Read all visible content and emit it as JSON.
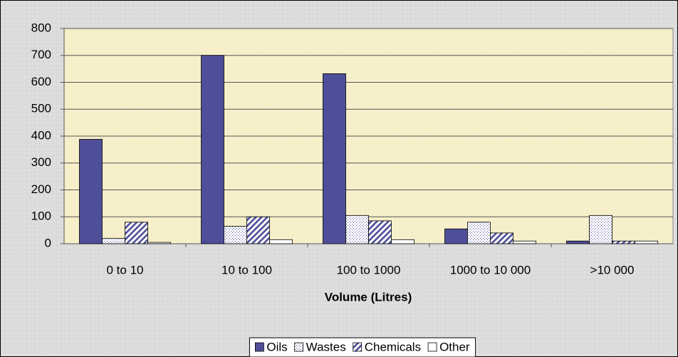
{
  "chart_data": {
    "type": "bar",
    "x_label": "Volume (Litres)",
    "categories": [
      "0 to 10",
      "10 to 100",
      "100 to 1000",
      "1000 to 10 000",
      ">10 000"
    ],
    "series": [
      {
        "name": "Oils",
        "color": "#4f4f99",
        "pattern": "solid",
        "values": [
          388,
          700,
          632,
          55,
          10
        ]
      },
      {
        "name": "Wastes",
        "color": "#4f4f99",
        "pattern": "dots",
        "values": [
          20,
          65,
          105,
          80,
          105
        ]
      },
      {
        "name": "Chemicals",
        "color": "#4f4f99",
        "pattern": "stripes",
        "values": [
          80,
          100,
          85,
          40,
          10
        ]
      },
      {
        "name": "Other",
        "color": "#4f4f99",
        "pattern": "none",
        "values": [
          5,
          15,
          15,
          10,
          10
        ]
      }
    ],
    "ylim": [
      0,
      800
    ],
    "yticks": [
      0,
      100,
      200,
      300,
      400,
      500,
      600,
      700,
      800
    ],
    "grid": true,
    "legend": "bottom"
  }
}
